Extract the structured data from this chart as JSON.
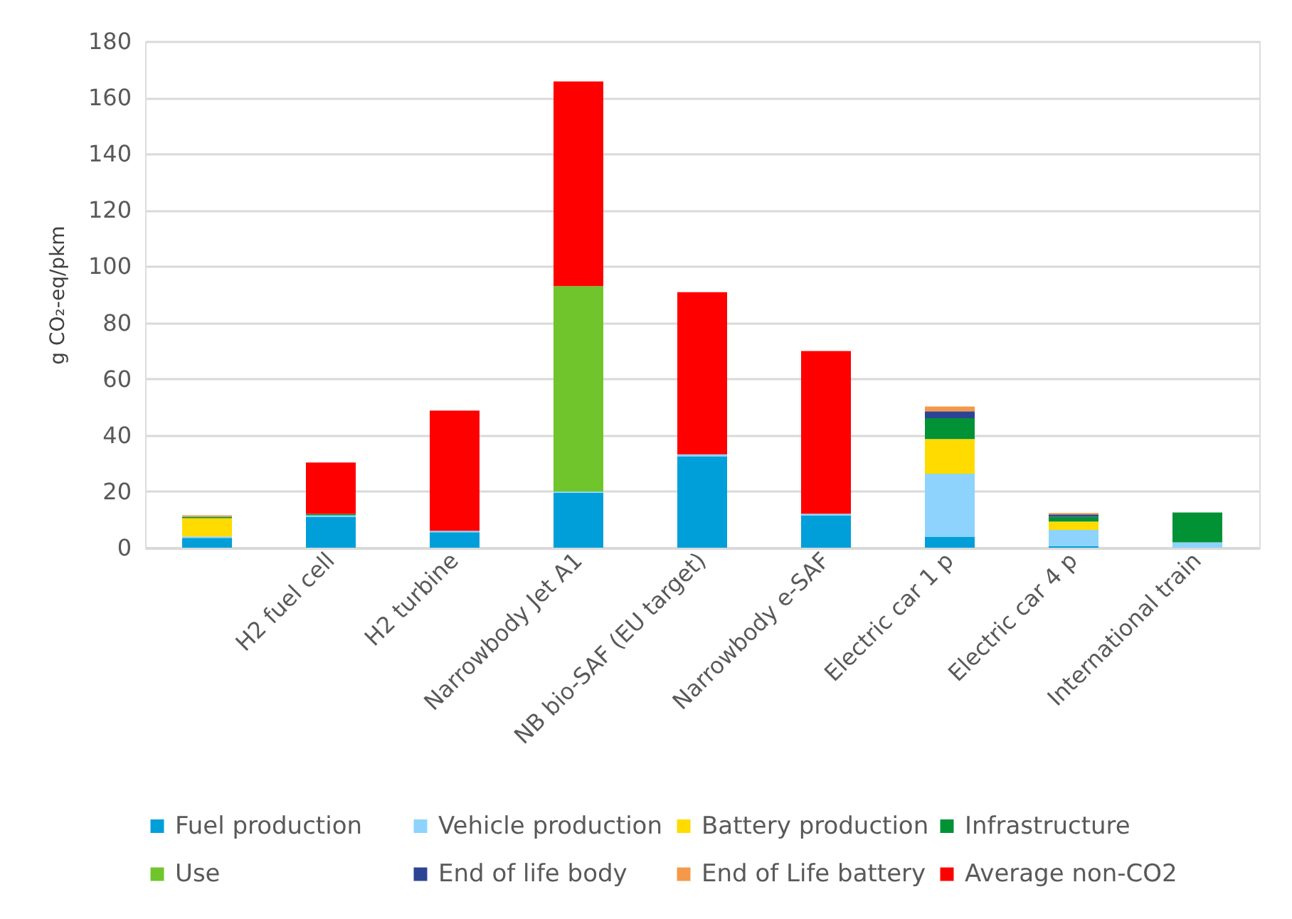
{
  "chart_data": {
    "type": "bar",
    "stacked": true,
    "categories": [
      null,
      "H2 fuel cell",
      "H2 turbine",
      "Narrowbody Jet A1",
      "NB bio-SAF (EU target)",
      "Narrowbody e-SAF",
      "Electric car 1 p",
      "Electric car 4 p",
      "International train"
    ],
    "ylabel": "g CO₂-eq/pkm",
    "ylim": [
      0,
      180
    ],
    "yticks": [
      0,
      20,
      40,
      60,
      80,
      100,
      120,
      140,
      160,
      180
    ],
    "grid": "y",
    "legend": "bottom",
    "series": [
      {
        "name": "Fuel production",
        "color": "#009fd9",
        "values": [
          3.5,
          11,
          5.5,
          19.5,
          32.5,
          11.5,
          3.9,
          0.6,
          null
        ]
      },
      {
        "name": "Vehicle production",
        "color": "#8dd3fd",
        "values": [
          0.5,
          0.5,
          0.5,
          0.5,
          0.7,
          0.6,
          22.4,
          5.7,
          1.9
        ]
      },
      {
        "name": "Battery production",
        "color": "#ffdb00",
        "values": [
          6.5,
          null,
          null,
          null,
          null,
          null,
          12.3,
          3.0,
          null
        ]
      },
      {
        "name": "Infrastructure",
        "color": "#009235",
        "values": [
          0.5,
          0.5,
          null,
          null,
          null,
          null,
          7.4,
          1.7,
          10.6
        ]
      },
      {
        "name": "Use",
        "color": "#70c42c",
        "values": [
          null,
          null,
          null,
          73,
          null,
          null,
          null,
          null,
          null
        ]
      },
      {
        "name": "End of life body",
        "color": "#2d4495",
        "values": [
          null,
          null,
          null,
          null,
          null,
          null,
          2.5,
          0.8,
          null
        ]
      },
      {
        "name": "End of Life battery",
        "color": "#f4994a",
        "values": [
          0.5,
          null,
          null,
          null,
          null,
          null,
          1.7,
          0.5,
          null
        ]
      },
      {
        "name": "Average non-CO2",
        "color": "#ff0000",
        "values": [
          null,
          18.3,
          42.7,
          72.7,
          57.6,
          57.8,
          null,
          null,
          null
        ]
      }
    ]
  }
}
